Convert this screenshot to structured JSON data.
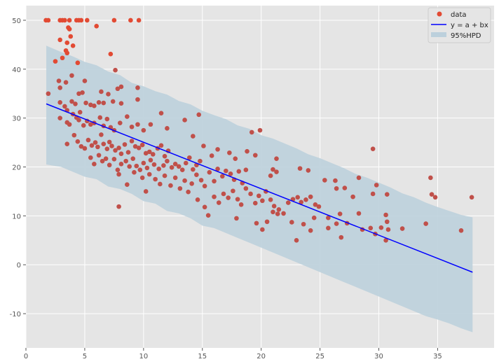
{
  "chart_data": {
    "type": "scatter",
    "title": "",
    "xlabel": "",
    "ylabel": "",
    "xlim": [
      0,
      39.8
    ],
    "ylim": [
      -17,
      53
    ],
    "xticks": [
      0,
      5,
      10,
      15,
      20,
      25,
      30,
      35
    ],
    "yticks": [
      -10,
      0,
      10,
      20,
      30,
      40,
      50
    ],
    "grid": true,
    "legend_position": "top-right",
    "legend": [
      "data",
      "y = a + bx",
      "95%HPD"
    ],
    "colors": {
      "data": "#e24a33",
      "data_dark": "#c0504a",
      "line": "#0000ff",
      "band": "#bcd0dc",
      "background": "#e5e5e5"
    },
    "line": {
      "intercept": 34.55,
      "slope": -0.95,
      "x_range": [
        1.73,
        37.97
      ]
    },
    "band": [
      [
        1.73,
        20.5,
        44.8
      ],
      [
        3,
        20,
        43.5
      ],
      [
        4,
        19,
        42.6
      ],
      [
        5,
        18,
        41.5
      ],
      [
        6,
        17.5,
        40.8
      ],
      [
        7,
        16,
        39.5
      ],
      [
        8,
        15.5,
        38.8
      ],
      [
        9,
        14.5,
        37.2
      ],
      [
        10,
        13,
        36.5
      ],
      [
        11,
        12.5,
        35.5
      ],
      [
        12,
        11,
        34.8
      ],
      [
        13,
        10.5,
        33.5
      ],
      [
        14,
        9.5,
        32.8
      ],
      [
        15,
        8,
        31.5
      ],
      [
        16,
        7.5,
        30.6
      ],
      [
        17,
        6.5,
        29.8
      ],
      [
        18,
        5.5,
        28.5
      ],
      [
        19,
        4.5,
        27.8
      ],
      [
        20,
        3.5,
        26.5
      ],
      [
        21,
        2.5,
        25.8
      ],
      [
        22,
        1.5,
        24.8
      ],
      [
        23,
        0.5,
        23.8
      ],
      [
        24,
        -0.5,
        22.6
      ],
      [
        25,
        -1.5,
        21.8
      ],
      [
        26,
        -2.5,
        20.8
      ],
      [
        27,
        -3.5,
        19.8
      ],
      [
        28,
        -4.5,
        18.6
      ],
      [
        29,
        -5.5,
        17.8
      ],
      [
        30,
        -6.5,
        16.8
      ],
      [
        31,
        -7.5,
        15.8
      ],
      [
        32,
        -8.5,
        14.6
      ],
      [
        33,
        -9.5,
        13.8
      ],
      [
        34,
        -10.5,
        12.7
      ],
      [
        35,
        -11.2,
        11.8
      ],
      [
        36,
        -12,
        11
      ],
      [
        37,
        -13,
        10.2
      ],
      [
        37.97,
        -13.8,
        9.7
      ]
    ],
    "points": [
      [
        1.7,
        50
      ],
      [
        1.9,
        50
      ],
      [
        2.9,
        50
      ],
      [
        3.1,
        50
      ],
      [
        3.3,
        50
      ],
      [
        3.7,
        50
      ],
      [
        4.3,
        50
      ],
      [
        4.5,
        50
      ],
      [
        4.7,
        50
      ],
      [
        5.2,
        50
      ],
      [
        7.5,
        50
      ],
      [
        8.9,
        50
      ],
      [
        9.6,
        50
      ],
      [
        2.9,
        46
      ],
      [
        3.5,
        45.4
      ],
      [
        3.8,
        46.7
      ],
      [
        3.6,
        48.5
      ],
      [
        3.7,
        48.2
      ],
      [
        4,
        44.8
      ],
      [
        3.4,
        43.8
      ],
      [
        3.5,
        43.3
      ],
      [
        3.1,
        42.3
      ],
      [
        2.5,
        41.6
      ],
      [
        6,
        48.8
      ],
      [
        7.2,
        43.1
      ],
      [
        7.6,
        39.8
      ],
      [
        1.9,
        35
      ],
      [
        2.8,
        37.6
      ],
      [
        3.4,
        37.3
      ],
      [
        4.8,
        35.2
      ],
      [
        4.5,
        35
      ],
      [
        9.5,
        36.2
      ],
      [
        8.1,
        36.4
      ],
      [
        6.4,
        35.4
      ],
      [
        7.8,
        36
      ],
      [
        4.4,
        41.3
      ],
      [
        5,
        37.6
      ],
      [
        3.9,
        38.7
      ],
      [
        2.9,
        36.2
      ],
      [
        2.9,
        33.2
      ],
      [
        3.3,
        32.4
      ],
      [
        3.5,
        31.6
      ],
      [
        3.9,
        33.4
      ],
      [
        4.2,
        32.9
      ],
      [
        4.6,
        31.2
      ],
      [
        5.1,
        33.1
      ],
      [
        5.5,
        32.7
      ],
      [
        5.8,
        32.5
      ],
      [
        6.2,
        33.2
      ],
      [
        6.6,
        33.1
      ],
      [
        7,
        34.9
      ],
      [
        7.4,
        33.4
      ],
      [
        8.1,
        33
      ],
      [
        9.5,
        33.8
      ],
      [
        2.9,
        30
      ],
      [
        3.5,
        29.1
      ],
      [
        3.7,
        28.7
      ],
      [
        4,
        30.8
      ],
      [
        4.3,
        30.1
      ],
      [
        4.5,
        29.6
      ],
      [
        4.9,
        28.5
      ],
      [
        5.2,
        29.4
      ],
      [
        5.5,
        28.7
      ],
      [
        5.8,
        29
      ],
      [
        6.3,
        30.1
      ],
      [
        6.6,
        28.4
      ],
      [
        6.9,
        29.8
      ],
      [
        7.2,
        28.1
      ],
      [
        7.5,
        27.5
      ],
      [
        8,
        29
      ],
      [
        8.6,
        30.3
      ],
      [
        9,
        28.2
      ],
      [
        9.5,
        28.7
      ],
      [
        10,
        27.5
      ],
      [
        3.5,
        24.7
      ],
      [
        4.1,
        26.5
      ],
      [
        4.4,
        25.2
      ],
      [
        4.7,
        24.2
      ],
      [
        5,
        23.8
      ],
      [
        5.3,
        25.5
      ],
      [
        5.6,
        24.4
      ],
      [
        5.9,
        25
      ],
      [
        6.1,
        24.1
      ],
      [
        6.4,
        26.6
      ],
      [
        6.6,
        24.7
      ],
      [
        6.9,
        23.7
      ],
      [
        7.1,
        25.1
      ],
      [
        7.3,
        24.3
      ],
      [
        7.6,
        23.4
      ],
      [
        7.9,
        23.9
      ],
      [
        8.1,
        22.7
      ],
      [
        8.4,
        24.6
      ],
      [
        8.7,
        23
      ],
      [
        9,
        25.3
      ],
      [
        9.3,
        24.2
      ],
      [
        9.6,
        23.9
      ],
      [
        9.9,
        24.5
      ],
      [
        10.2,
        22.8
      ],
      [
        10.5,
        23.1
      ],
      [
        10.8,
        22.6
      ],
      [
        11.2,
        23.8
      ],
      [
        11.5,
        24.4
      ],
      [
        11.8,
        22.2
      ],
      [
        12.1,
        23.3
      ],
      [
        5.5,
        21.9
      ],
      [
        5.8,
        20.6
      ],
      [
        6.2,
        22.4
      ],
      [
        6.5,
        21.2
      ],
      [
        6.8,
        21.7
      ],
      [
        7.1,
        20.4
      ],
      [
        7.5,
        21.6
      ],
      [
        7.8,
        19.4
      ],
      [
        8.1,
        20.6
      ],
      [
        8.5,
        21.2
      ],
      [
        8.8,
        20.1
      ],
      [
        9.1,
        21.7
      ],
      [
        9.4,
        20.2
      ],
      [
        9.7,
        19.4
      ],
      [
        10,
        20.8
      ],
      [
        10.3,
        19.8
      ],
      [
        10.6,
        21.4
      ],
      [
        10.9,
        20.5
      ],
      [
        11.3,
        19.6
      ],
      [
        11.7,
        20.3
      ],
      [
        12,
        21.2
      ],
      [
        12.4,
        19.9
      ],
      [
        12.7,
        20.6
      ],
      [
        13,
        20.1
      ],
      [
        13.3,
        19.4
      ],
      [
        13.6,
        20.8
      ],
      [
        13.9,
        21.9
      ],
      [
        14.2,
        19.5
      ],
      [
        14.5,
        20.4
      ],
      [
        14.8,
        21.2
      ],
      [
        7.9,
        18.5
      ],
      [
        8.6,
        16.4
      ],
      [
        9.2,
        18.9
      ],
      [
        9.9,
        17.8
      ],
      [
        10.2,
        15
      ],
      [
        10.5,
        18.5
      ],
      [
        11,
        17.5
      ],
      [
        11.4,
        16.5
      ],
      [
        11.8,
        18.2
      ],
      [
        12.3,
        16.2
      ],
      [
        12.7,
        17.8
      ],
      [
        13.1,
        15.6
      ],
      [
        13.5,
        17.2
      ],
      [
        13.8,
        14.9
      ],
      [
        14.1,
        16.6
      ],
      [
        14.5,
        18.4
      ],
      [
        14.9,
        17.3
      ],
      [
        15.2,
        16.1
      ],
      [
        15.6,
        18.9
      ],
      [
        16,
        17.1
      ],
      [
        16.3,
        19.6
      ],
      [
        16.7,
        18.1
      ],
      [
        17,
        19.2
      ],
      [
        17.4,
        18.6
      ],
      [
        17.7,
        17.4
      ],
      [
        18.1,
        19.1
      ],
      [
        18.4,
        16.7
      ],
      [
        18.7,
        19.4
      ],
      [
        14.7,
        30.7
      ],
      [
        14.2,
        26.3
      ],
      [
        13.5,
        29.6
      ],
      [
        12,
        27.9
      ],
      [
        11.5,
        31
      ],
      [
        10.6,
        28.7
      ],
      [
        15.8,
        22.3
      ],
      [
        16.3,
        23.6
      ],
      [
        15.1,
        24.3
      ],
      [
        17.3,
        22.9
      ],
      [
        17.8,
        21.7
      ],
      [
        18.8,
        23.2
      ],
      [
        19.2,
        27.1
      ],
      [
        19.9,
        27.5
      ],
      [
        19.5,
        22.4
      ],
      [
        21.3,
        21.7
      ],
      [
        21,
        19.5
      ],
      [
        20.8,
        18.2
      ],
      [
        21.3,
        19
      ],
      [
        14.6,
        13.3
      ],
      [
        15.2,
        11.8
      ],
      [
        15.5,
        10.1
      ],
      [
        16,
        13.9
      ],
      [
        16.4,
        12.7
      ],
      [
        16.8,
        14.5
      ],
      [
        17.2,
        13.7
      ],
      [
        17.6,
        15.1
      ],
      [
        18,
        13.4
      ],
      [
        18.3,
        12.3
      ],
      [
        18.7,
        15.6
      ],
      [
        19.1,
        14.5
      ],
      [
        19.5,
        12.6
      ],
      [
        19.8,
        14.1
      ],
      [
        20.1,
        13.1
      ],
      [
        20.4,
        15
      ],
      [
        20.8,
        13.3
      ],
      [
        21.1,
        12
      ],
      [
        21.5,
        11.3
      ],
      [
        21.9,
        10.5
      ],
      [
        22.3,
        12.7
      ],
      [
        22.7,
        13.4
      ],
      [
        23.1,
        13.8
      ],
      [
        23.4,
        12.8
      ],
      [
        23.8,
        13.3
      ],
      [
        24.2,
        13.9
      ],
      [
        24.6,
        12.3
      ],
      [
        24.9,
        11.9
      ],
      [
        17.9,
        9.5
      ],
      [
        19.6,
        8.5
      ],
      [
        20.1,
        7.2
      ],
      [
        20.5,
        8.8
      ],
      [
        21,
        10.8
      ],
      [
        21.4,
        10.4
      ],
      [
        22.6,
        8.7
      ],
      [
        23,
        5
      ],
      [
        23.6,
        8.3
      ],
      [
        24.2,
        7
      ],
      [
        24.5,
        9.6
      ],
      [
        25.7,
        7.5
      ],
      [
        26.4,
        8.4
      ],
      [
        26.8,
        5.6
      ],
      [
        27.3,
        8.5
      ],
      [
        28.6,
        7.2
      ],
      [
        29.3,
        7.5
      ],
      [
        29.7,
        6.3
      ],
      [
        30.2,
        7.6
      ],
      [
        30.6,
        5
      ],
      [
        30.7,
        8.8
      ],
      [
        30.8,
        7.2
      ],
      [
        32,
        7.4
      ],
      [
        34,
        8.4
      ],
      [
        37,
        7
      ],
      [
        23.3,
        19.7
      ],
      [
        24,
        19.3
      ],
      [
        25.4,
        17.3
      ],
      [
        26.3,
        17.2
      ],
      [
        26.4,
        15.6
      ],
      [
        27.1,
        15.7
      ],
      [
        28.3,
        17.8
      ],
      [
        27.8,
        13.9
      ],
      [
        26.7,
        10.4
      ],
      [
        25.7,
        9.6
      ],
      [
        28.3,
        10.5
      ],
      [
        29.5,
        14.5
      ],
      [
        29.8,
        16.3
      ],
      [
        29.5,
        23.7
      ],
      [
        30.7,
        14.4
      ],
      [
        30.6,
        10.2
      ],
      [
        34.4,
        17.8
      ],
      [
        34.5,
        14.4
      ],
      [
        34.8,
        13.8
      ],
      [
        37.9,
        13.8
      ],
      [
        7.9,
        11.9
      ]
    ]
  }
}
